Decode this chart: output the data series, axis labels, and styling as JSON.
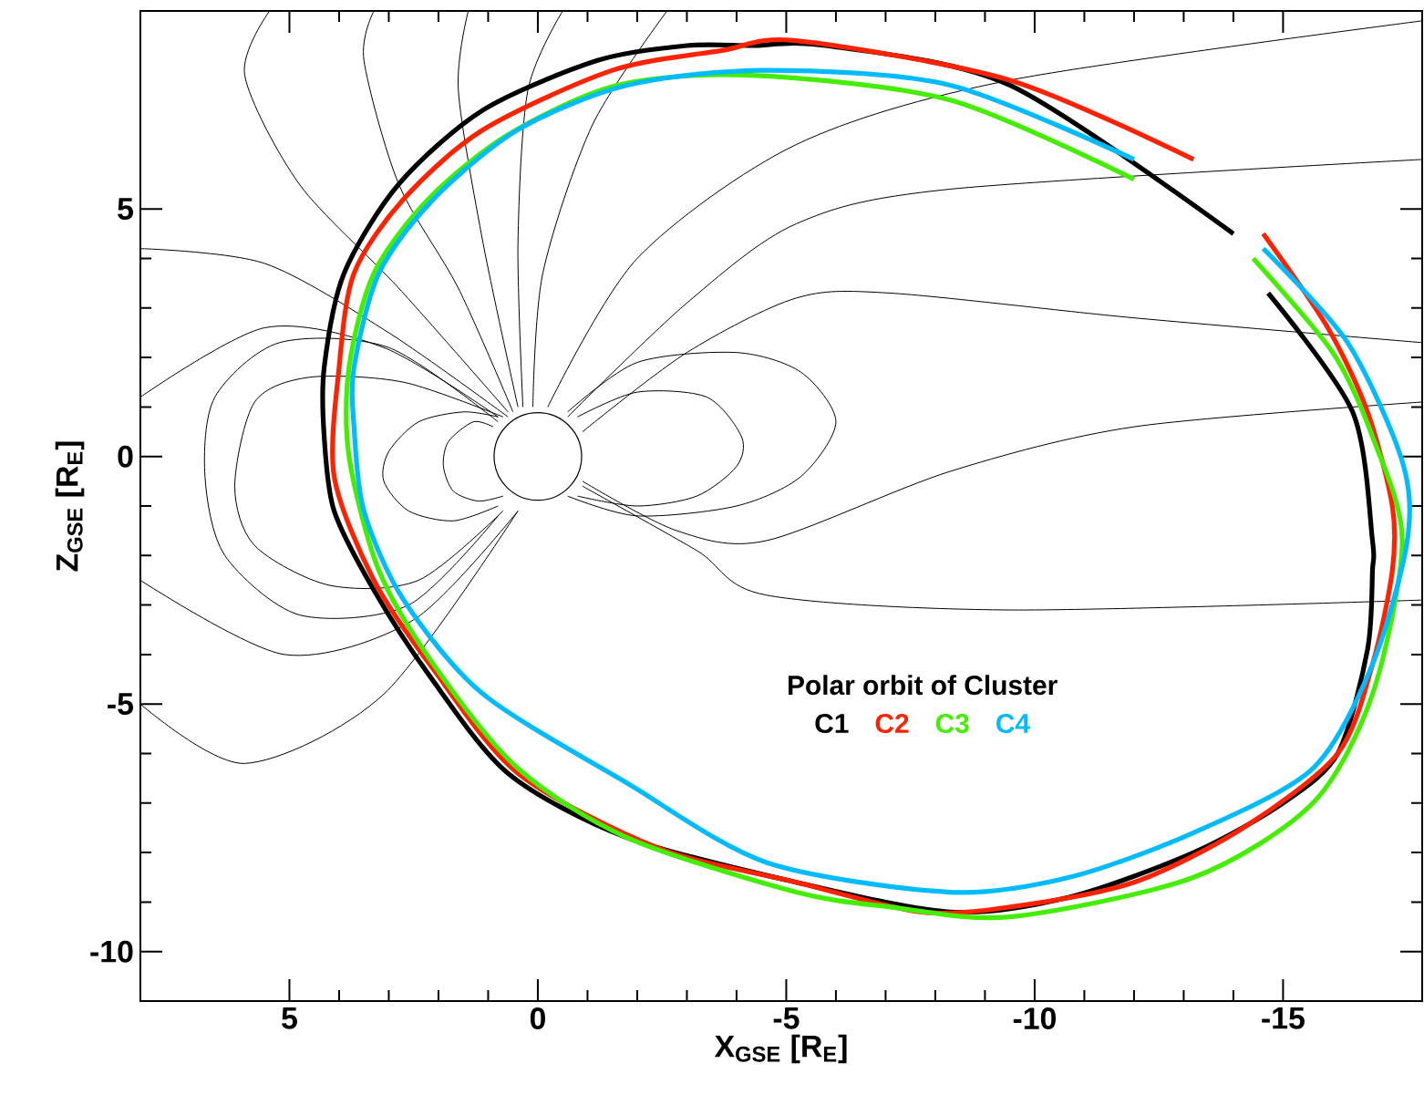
{
  "chart_data": {
    "type": "line",
    "xlabel": "X$_{GSE}$ [R$_{E}$]",
    "ylabel": "Z$_{GSE}$ [R$_{E}$]",
    "legend_title": "Polar orbit of Cluster",
    "xlim": [
      8,
      -17.8
    ],
    "ylim": [
      -11,
      9
    ],
    "xticks": [
      5,
      0,
      -5,
      -10,
      -15
    ],
    "yticks": [
      5,
      0,
      -5,
      -10
    ],
    "grid": false,
    "legend": "bottom right",
    "marker": "none",
    "line_style": "solid",
    "series": [
      {
        "color": "#000000",
        "x": [
          0.7,
          2.7,
          4.6,
          5.7,
          6.1,
          5.7,
          4.2,
          2.4,
          0.7
        ],
        "values": [
          0.8,
          1.5,
          1.6,
          1.1,
          -0.6,
          -1.8,
          -2.6,
          -2.5,
          -1.1
        ]
      },
      {
        "color": "#000000",
        "x": [
          0.8,
          1.5,
          2.4,
          3.0,
          3.1,
          2.6,
          1.7,
          0.8
        ],
        "values": [
          0.8,
          0.9,
          0.7,
          0.1,
          -0.5,
          -1.1,
          -1.3,
          -1.0
        ]
      },
      {
        "color": "#000000",
        "x": [
          0.8,
          3.0,
          5.2,
          6.5,
          6.7,
          6.3,
          4.8,
          2.6,
          0.8
        ],
        "values": [
          0.7,
          2.2,
          2.3,
          1.2,
          -0.4,
          -2.0,
          -3.2,
          -3.0,
          -1.2
        ]
      },
      {
        "color": "#000000",
        "x": [
          0.9,
          1.3,
          1.8,
          1.9,
          1.7,
          1.2,
          0.7
        ],
        "values": [
          0.6,
          0.7,
          0.3,
          -0.2,
          -0.7,
          -0.9,
          -0.8
        ]
      },
      {
        "color": "#000000",
        "x": [
          -0.6,
          -2.0,
          -4.0,
          -5.3,
          -6.0,
          -5.3,
          -4.0,
          -2.0,
          -0.6
        ],
        "values": [
          0.9,
          1.9,
          2.1,
          1.7,
          0.7,
          -0.4,
          -1.0,
          -1.2,
          -0.8
        ]
      },
      {
        "color": "#000000",
        "x": [
          -0.8,
          -2.0,
          -3.4,
          -4.1,
          -4.0,
          -3.2,
          -2.0,
          -0.8
        ],
        "values": [
          0.8,
          1.3,
          1.2,
          0.4,
          -0.2,
          -0.8,
          -1.0,
          -0.8
        ]
      },
      {
        "color": "#000000",
        "x": [
          5.4,
          5.9,
          4.8,
          2.8,
          0.6
        ],
        "values": [
          9.0,
          7.7,
          5.5,
          3.4,
          0.9
        ]
      },
      {
        "color": "#000000",
        "x": [
          3.3,
          3.5,
          2.8,
          1.6,
          0.5
        ],
        "values": [
          9.0,
          8.0,
          5.5,
          3.4,
          0.9
        ]
      },
      {
        "color": "#000000",
        "x": [
          1.4,
          1.6,
          1.1,
          0.4
        ],
        "values": [
          9.0,
          7.4,
          4.3,
          1.0
        ]
      },
      {
        "color": "#000000",
        "x": [
          -0.5,
          0.2,
          0.4,
          0.3
        ],
        "values": [
          9.0,
          7.4,
          4.3,
          1.0
        ]
      },
      {
        "color": "#000000",
        "x": [
          -2.6,
          -1.1,
          -0.1,
          0.1
        ],
        "values": [
          9.0,
          6.7,
          3.7,
          1.0
        ]
      },
      {
        "color": "#000000",
        "x": [
          -0.2,
          -2.0,
          -5.2,
          -9.5,
          -17.8
        ],
        "values": [
          1.0,
          4.0,
          6.3,
          7.6,
          8.8
        ]
      },
      {
        "color": "#000000",
        "x": [
          -0.6,
          -3.0,
          -5.2,
          -8.3,
          -17.8
        ],
        "values": [
          0.8,
          3.1,
          4.7,
          5.4,
          6.0
        ]
      },
      {
        "color": "#000000",
        "x": [
          -0.9,
          -3.0,
          -5.2,
          -7.1,
          -12.0,
          -17.8
        ],
        "values": [
          0.5,
          2.1,
          3.2,
          3.3,
          2.8,
          2.3
        ]
      },
      {
        "color": "#000000",
        "x": [
          -0.9,
          -3.2,
          -4.6,
          -9.5,
          -17.8
        ],
        "values": [
          -0.6,
          -1.9,
          -2.8,
          -3.1,
          -2.9
        ]
      },
      {
        "color": "#000000",
        "x": [
          -0.9,
          -2.8,
          -4.6,
          -8.3,
          -12.0,
          -17.8
        ],
        "values": [
          -0.5,
          -1.5,
          -1.7,
          -0.3,
          0.6,
          1.1
        ]
      },
      {
        "color": "#000000",
        "x": [
          8.0,
          5.9,
          3.1,
          0.4
        ],
        "values": [
          -5.0,
          -6.2,
          -4.8,
          -1.1
        ]
      },
      {
        "color": "#000000",
        "x": [
          8.0,
          5.1,
          2.5,
          0.4
        ],
        "values": [
          -2.5,
          -4.0,
          -3.3,
          -1.1
        ]
      },
      {
        "color": "#000000",
        "x": [
          8.0,
          5.5,
          3.0,
          0.6
        ],
        "values": [
          4.2,
          3.9,
          2.5,
          0.8
        ]
      },
      {
        "color": "#000000",
        "x": [
          8.0,
          5.5,
          3.1,
          0.8
        ],
        "values": [
          1.2,
          2.6,
          2.2,
          0.8
        ]
      },
      {
        "name": "C1",
        "color": "#000000",
        "x": [
          -14.7,
          -16.4,
          -16.8,
          -16.8,
          -16.7,
          -16.1,
          -15.0,
          -13.2,
          -10.7,
          -8.3,
          -5.2,
          -1.8,
          0.6,
          2.2,
          3.3,
          4.1,
          4.3,
          4.3,
          3.9,
          2.8,
          1.1,
          -1.2,
          -3.0,
          -4.3,
          -5.8,
          -9.5,
          -14.0
        ],
        "values": [
          3.3,
          0.9,
          -1.7,
          -2.3,
          -3.9,
          -6.0,
          -7.0,
          -8.0,
          -8.9,
          -9.2,
          -8.6,
          -7.7,
          -6.4,
          -4.4,
          -2.7,
          -1.1,
          0.4,
          1.8,
          3.7,
          5.5,
          7.0,
          8.0,
          8.3,
          8.3,
          8.3,
          7.5,
          4.5
        ]
      },
      {
        "name": "C2",
        "color": "#ff2200",
        "x": [
          -14.6,
          -15.9,
          -16.7,
          -17.2,
          -17.2,
          -16.8,
          -16.1,
          -14.2,
          -12.0,
          -9.5,
          -7.7,
          -5.2,
          -2.4,
          0.4,
          2.1,
          3.3,
          4.1,
          4.0,
          3.7,
          2.7,
          1.1,
          -1.5,
          -3.7,
          -5.2,
          -9.5,
          -13.2
        ],
        "values": [
          4.5,
          2.6,
          0.9,
          -1.0,
          -2.3,
          -4.2,
          -6.0,
          -7.5,
          -8.6,
          -9.1,
          -9.2,
          -8.6,
          -7.9,
          -6.4,
          -4.3,
          -2.5,
          -0.4,
          1.8,
          3.7,
          5.2,
          6.6,
          7.8,
          8.2,
          8.4,
          7.6,
          6.0
        ]
      },
      {
        "name": "C3",
        "color": "#44ee00",
        "x": [
          -14.4,
          -16.0,
          -16.8,
          -17.4,
          -16.8,
          -15.6,
          -13.2,
          -9.5,
          -7.1,
          -5.2,
          -1.8,
          0.4,
          2.1,
          3.2,
          3.8,
          3.8,
          3.3,
          2.2,
          0.6,
          -1.6,
          -4.3,
          -8.3,
          -12.0
        ],
        "values": [
          4.0,
          2.1,
          0.4,
          -1.7,
          -4.8,
          -7.0,
          -8.5,
          -9.3,
          -9.1,
          -8.8,
          -7.7,
          -6.3,
          -4.2,
          -2.3,
          0.0,
          1.8,
          3.7,
          5.2,
          6.5,
          7.5,
          7.7,
          7.2,
          5.6
        ]
      },
      {
        "name": "C4",
        "color": "#00bbff",
        "x": [
          -14.6,
          -16.3,
          -17.4,
          -17.5,
          -16.8,
          -15.6,
          -13.2,
          -10.7,
          -8.3,
          -4.6,
          -1.8,
          1.1,
          2.7,
          3.5,
          3.7,
          3.7,
          3.2,
          2.1,
          0.4,
          -1.8,
          -4.6,
          -8.3,
          -12.0
        ],
        "values": [
          4.2,
          2.3,
          -0.1,
          -1.7,
          -4.2,
          -6.3,
          -7.6,
          -8.5,
          -8.8,
          -8.2,
          -6.6,
          -4.8,
          -2.9,
          -1.1,
          0.6,
          1.8,
          3.7,
          5.2,
          6.6,
          7.5,
          7.8,
          7.5,
          6.0
        ]
      }
    ]
  }
}
